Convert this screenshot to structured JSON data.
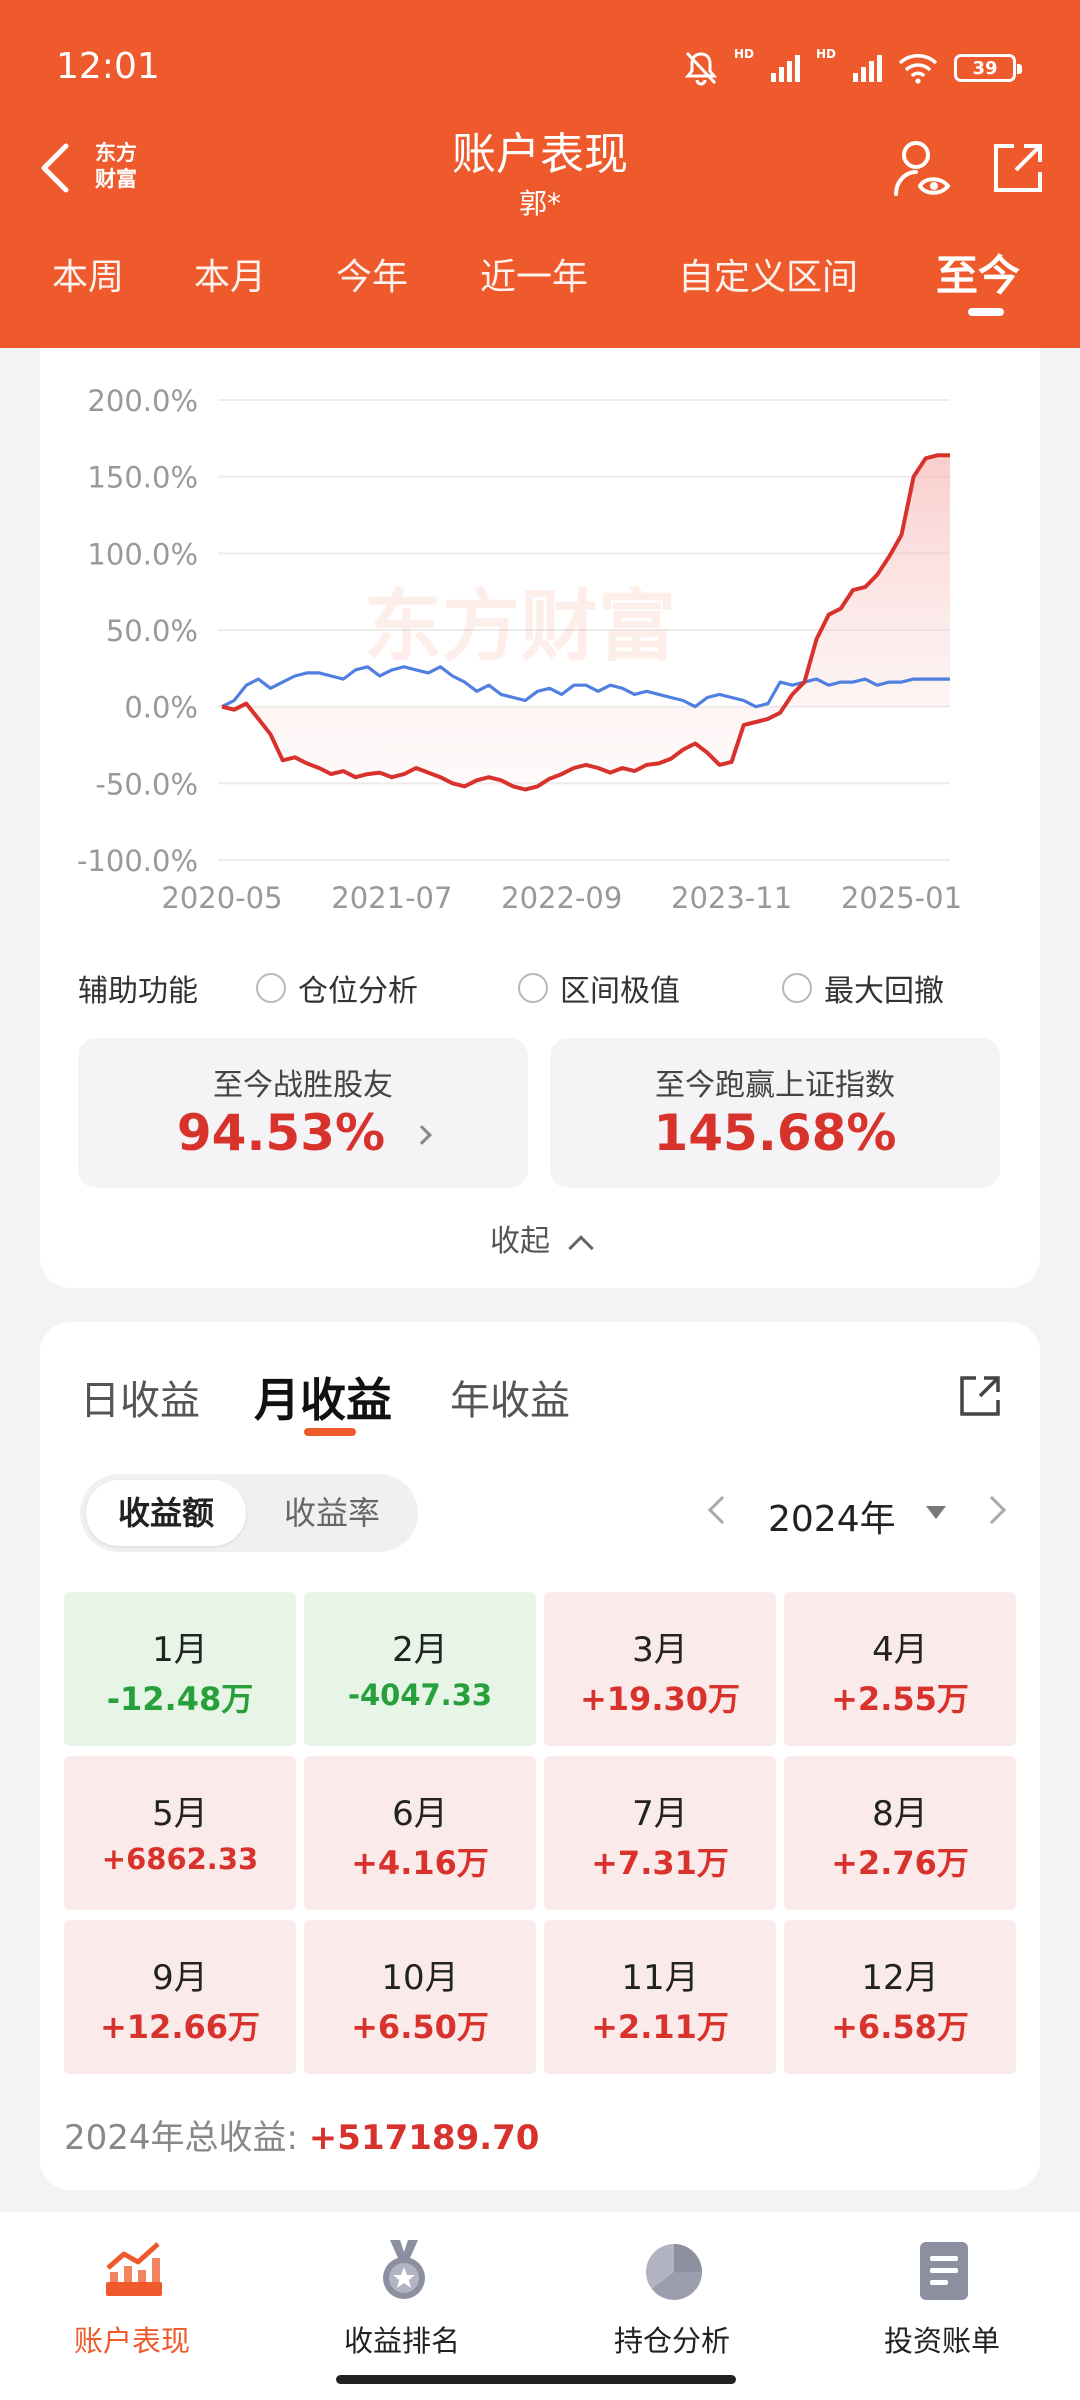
{
  "status": {
    "time": "12:01",
    "hd1": "HD",
    "hd2": "HD",
    "battery": "39"
  },
  "header": {
    "logo_line1": "东方",
    "logo_line2": "财富",
    "title": "账户表现",
    "subtitle": "郭*"
  },
  "period_tabs": [
    {
      "label": "本周"
    },
    {
      "label": "本月"
    },
    {
      "label": "今年"
    },
    {
      "label": "近一年"
    },
    {
      "label": "自定义区间"
    },
    {
      "label": "至今"
    }
  ],
  "period_active": "至今",
  "chart_data": {
    "type": "line",
    "watermark": "东方财富",
    "x_ticks": [
      "2020-05",
      "2021-07",
      "2022-09",
      "2023-11",
      "2025-01"
    ],
    "y_ticks": [
      "200.0%",
      "150.0%",
      "100.0%",
      "50.0%",
      "0.0%",
      "-50.0%",
      "-100.0%"
    ],
    "ylim": [
      -100,
      200
    ],
    "x": [
      "2020-05",
      "2020-06",
      "2020-07",
      "2020-08",
      "2020-09",
      "2020-10",
      "2020-11",
      "2020-12",
      "2021-01",
      "2021-02",
      "2021-03",
      "2021-04",
      "2021-05",
      "2021-06",
      "2021-07",
      "2021-08",
      "2021-09",
      "2021-10",
      "2021-11",
      "2021-12",
      "2022-01",
      "2022-02",
      "2022-03",
      "2022-04",
      "2022-05",
      "2022-06",
      "2022-07",
      "2022-08",
      "2022-09",
      "2022-10",
      "2022-11",
      "2022-12",
      "2023-01",
      "2023-02",
      "2023-03",
      "2023-04",
      "2023-05",
      "2023-06",
      "2023-07",
      "2023-08",
      "2023-09",
      "2023-10",
      "2023-11",
      "2023-12",
      "2024-01",
      "2024-02",
      "2024-03",
      "2024-04",
      "2024-05",
      "2024-06",
      "2024-07",
      "2024-08",
      "2024-09",
      "2024-10",
      "2024-11",
      "2024-12",
      "2025-01",
      "2025-02",
      "2025-03",
      "2025-04",
      "2025-05"
    ],
    "series": [
      {
        "color": "#d8322d",
        "values": [
          0,
          -2,
          2,
          -8,
          -18,
          -35,
          -33,
          -37,
          -40,
          -44,
          -42,
          -46,
          -44,
          -43,
          -46,
          -44,
          -40,
          -43,
          -46,
          -50,
          -52,
          -48,
          -46,
          -48,
          -52,
          -54,
          -52,
          -47,
          -44,
          -40,
          -38,
          -40,
          -43,
          -40,
          -42,
          -38,
          -37,
          -34,
          -28,
          -24,
          -30,
          -38,
          -36,
          -12,
          -10,
          -8,
          -4,
          8,
          16,
          44,
          60,
          64,
          76,
          78,
          86,
          98,
          112,
          150,
          162,
          164,
          164
        ]
      },
      {
        "color": "#4f7fe0",
        "values": [
          0,
          4,
          14,
          18,
          12,
          16,
          20,
          22,
          22,
          20,
          18,
          24,
          26,
          20,
          24,
          26,
          24,
          22,
          26,
          20,
          16,
          10,
          14,
          8,
          6,
          4,
          10,
          12,
          8,
          14,
          14,
          10,
          14,
          12,
          8,
          10,
          8,
          6,
          4,
          0,
          6,
          8,
          6,
          4,
          0,
          2,
          16,
          14,
          16,
          18,
          14,
          16,
          16,
          18,
          14,
          16,
          16,
          18,
          18,
          18,
          18
        ]
      }
    ]
  },
  "aux": {
    "label": "辅助功能",
    "options": [
      {
        "label": "仓位分析"
      },
      {
        "label": "区间极值"
      },
      {
        "label": "最大回撤"
      }
    ]
  },
  "stats": [
    {
      "label": "至今战胜股友",
      "value": "94.53%"
    },
    {
      "label": "至今跑赢上证指数",
      "value": "145.68%"
    }
  ],
  "collapse_label": "收起",
  "earnings_tabs": [
    {
      "label": "日收益"
    },
    {
      "label": "月收益"
    },
    {
      "label": "年收益"
    }
  ],
  "earnings_active": "月收益",
  "segment": [
    {
      "label": "收益额"
    },
    {
      "label": "收益率"
    }
  ],
  "year": "2024年",
  "months": [
    {
      "month": "1月",
      "value": "-12.48万",
      "sign": "neg"
    },
    {
      "month": "2月",
      "value": "-4047.33",
      "sign": "neg"
    },
    {
      "month": "3月",
      "value": "+19.30万",
      "sign": "pos"
    },
    {
      "month": "4月",
      "value": "+2.55万",
      "sign": "pos"
    },
    {
      "month": "5月",
      "value": "+6862.33",
      "sign": "pos"
    },
    {
      "month": "6月",
      "value": "+4.16万",
      "sign": "pos"
    },
    {
      "month": "7月",
      "value": "+7.31万",
      "sign": "pos"
    },
    {
      "month": "8月",
      "value": "+2.76万",
      "sign": "pos"
    },
    {
      "month": "9月",
      "value": "+12.66万",
      "sign": "pos"
    },
    {
      "month": "10月",
      "value": "+6.50万",
      "sign": "pos"
    },
    {
      "month": "11月",
      "value": "+2.11万",
      "sign": "pos"
    },
    {
      "month": "12月",
      "value": "+6.58万",
      "sign": "pos"
    }
  ],
  "total": {
    "label": "2024年总收益: ",
    "value": "+517189.70"
  },
  "bottom_nav": [
    {
      "label": "账户表现",
      "icon": "trend-chart-icon"
    },
    {
      "label": "收益排名",
      "icon": "medal-icon"
    },
    {
      "label": "持仓分析",
      "icon": "pie-chart-icon"
    },
    {
      "label": "投资账单",
      "icon": "bill-icon"
    }
  ],
  "colors": {
    "brand": "#ee5a2b",
    "up": "#d8322d",
    "down": "#27a03c",
    "index_line": "#4f7fe0"
  }
}
